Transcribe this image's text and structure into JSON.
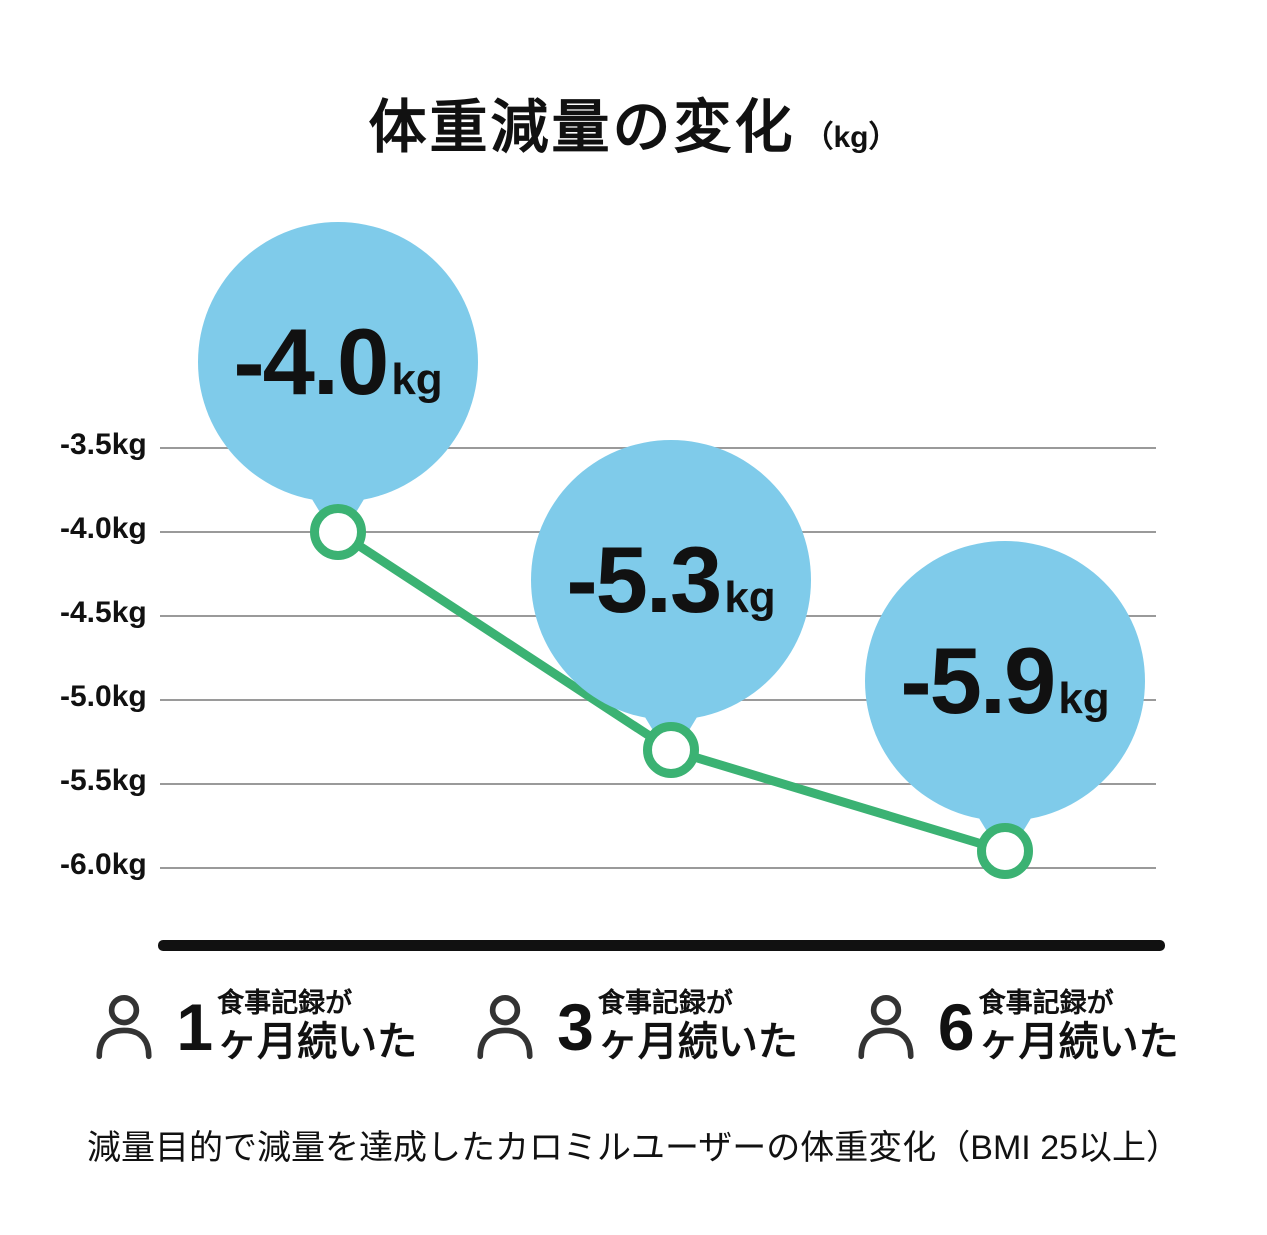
{
  "title": {
    "main": "体重減量の変化",
    "unit": "（kg）"
  },
  "chart_data": {
    "type": "line",
    "title": "体重減量の変化（kg）",
    "categories": [
      "食事記録が1ヶ月続いた",
      "食事記録が3ヶ月続いた",
      "食事記録が6ヶ月続いた"
    ],
    "values": [
      -4.0,
      -5.3,
      -5.9
    ],
    "value_labels": [
      {
        "num": "-4.0",
        "unit": "kg"
      },
      {
        "num": "-5.3",
        "unit": "kg"
      },
      {
        "num": "-5.9",
        "unit": "kg"
      }
    ],
    "yticks": [
      -3.5,
      -4.0,
      -4.5,
      -5.0,
      -5.5,
      -6.0
    ],
    "ytick_labels": [
      "-3.5kg",
      "-4.0kg",
      "-4.5kg",
      "-5.0kg",
      "-5.5kg",
      "-6.0kg"
    ],
    "ylim": [
      -3.2,
      -6.3
    ],
    "grid": true,
    "legend_position": "bottom",
    "colors": {
      "balloon": "#7FCBEA",
      "line": "#3BB273",
      "grid": "#9A9A9A",
      "axis": "#111111"
    }
  },
  "legend": {
    "items": [
      {
        "number": "1",
        "prefix": "食事記録が",
        "suffix": "ヶ月続いた"
      },
      {
        "number": "3",
        "prefix": "食事記録が",
        "suffix": "ヶ月続いた"
      },
      {
        "number": "6",
        "prefix": "食事記録が",
        "suffix": "ヶ月続いた"
      }
    ]
  },
  "footer": {
    "caption": "減量目的で減量を達成したカロミルユーザーの体重変化（BMI 25以上）"
  }
}
